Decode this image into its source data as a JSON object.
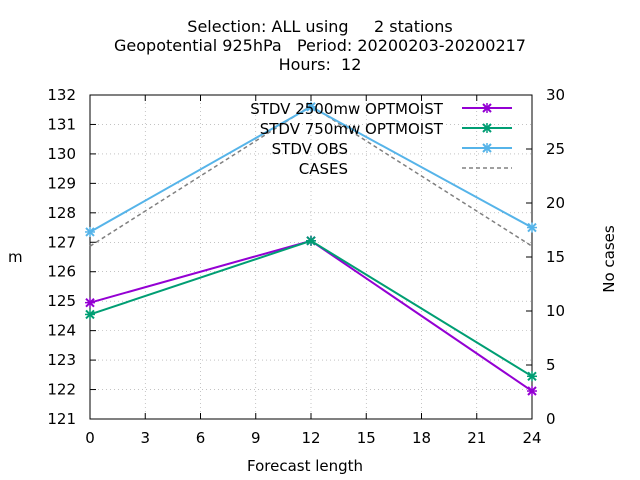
{
  "chart_data": {
    "type": "line",
    "title_lines": [
      "Selection: ALL using     2 stations",
      "Geopotential 925hPa   Period: 20200203-20200217",
      "Hours:  12"
    ],
    "xlabel": "Forecast length",
    "ylabel": "m",
    "y2label": "No cases",
    "xlim": [
      0,
      24
    ],
    "ylim": [
      121,
      132
    ],
    "y2lim": [
      0,
      30
    ],
    "x_ticks": [
      "0",
      "3",
      "6",
      "9",
      "12",
      "15",
      "18",
      "21",
      "24"
    ],
    "y_ticks": [
      "121",
      "122",
      "123",
      "124",
      "125",
      "126",
      "127",
      "128",
      "129",
      "130",
      "131",
      "132"
    ],
    "y2_ticks": [
      "0",
      "5",
      "10",
      "15",
      "20",
      "25",
      "30"
    ],
    "grid": true,
    "legend_position": "top-right",
    "series": [
      {
        "name": "STDV 2500m",
        "legend_suffix": "w  OPTMOIST",
        "axis": "y1",
        "color": "#9400d3",
        "style": "solid",
        "marker": "x",
        "x": [
          0,
          12,
          24
        ],
        "values": [
          124.95,
          127.05,
          121.95
        ]
      },
      {
        "name": "STDV 750m",
        "legend_suffix": "w  OPTMOIST",
        "axis": "y1",
        "color": "#009e73",
        "style": "solid",
        "marker": "x",
        "x": [
          0,
          12,
          24
        ],
        "values": [
          124.55,
          127.05,
          122.45
        ]
      },
      {
        "name": "STDV OBS",
        "axis": "y1",
        "color": "#56b4e9",
        "style": "solid",
        "marker": "x",
        "x": [
          0,
          12,
          24
        ],
        "values": [
          127.35,
          131.6,
          127.5
        ]
      },
      {
        "name": "CASES",
        "axis": "y2",
        "color": "#808080",
        "style": "dashed",
        "marker": "none",
        "x": [
          0,
          12,
          24
        ],
        "values": [
          16,
          29,
          16
        ]
      }
    ]
  }
}
